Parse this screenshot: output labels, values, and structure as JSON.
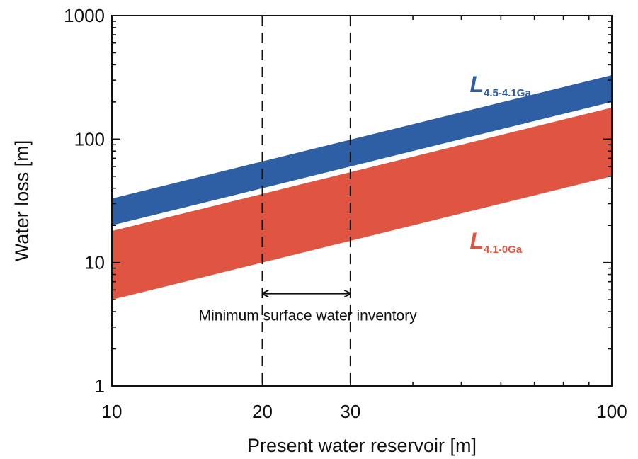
{
  "chart_data": {
    "type": "area",
    "title": "",
    "xlabel": "Present water reservoir [m]",
    "ylabel": "Water loss [m]",
    "xscale": "log",
    "yscale": "log",
    "xlim": [
      10,
      100
    ],
    "ylim": [
      1,
      1000
    ],
    "x_tick_labels": [
      {
        "value": 10,
        "label": "10"
      },
      {
        "value": 20,
        "label": "20"
      },
      {
        "value": 30,
        "label": "30"
      },
      {
        "value": 100,
        "label": "100"
      }
    ],
    "y_tick_labels": [
      {
        "value": 1,
        "label": "1"
      },
      {
        "value": 10,
        "label": "10"
      },
      {
        "value": 100,
        "label": "100"
      },
      {
        "value": 1000,
        "label": "1000"
      }
    ],
    "grid": false,
    "series": [
      {
        "name_main": "L",
        "name_sub": "4.5-4.1Ga",
        "color": "#2e5fa4",
        "x": [
          10,
          100
        ],
        "lower": [
          20,
          200
        ],
        "upper": [
          33,
          330
        ]
      },
      {
        "name_main": "L",
        "name_sub": "4.1-0Ga",
        "color": "#e05442",
        "x": [
          10,
          100
        ],
        "lower": [
          5,
          50
        ],
        "upper": [
          18,
          180
        ]
      }
    ],
    "vlines": [
      20,
      30
    ],
    "annotation": {
      "text": "Minimum surface water inventory",
      "arrow_from": 20,
      "arrow_to": 30,
      "arrow_y": 5.6
    }
  }
}
